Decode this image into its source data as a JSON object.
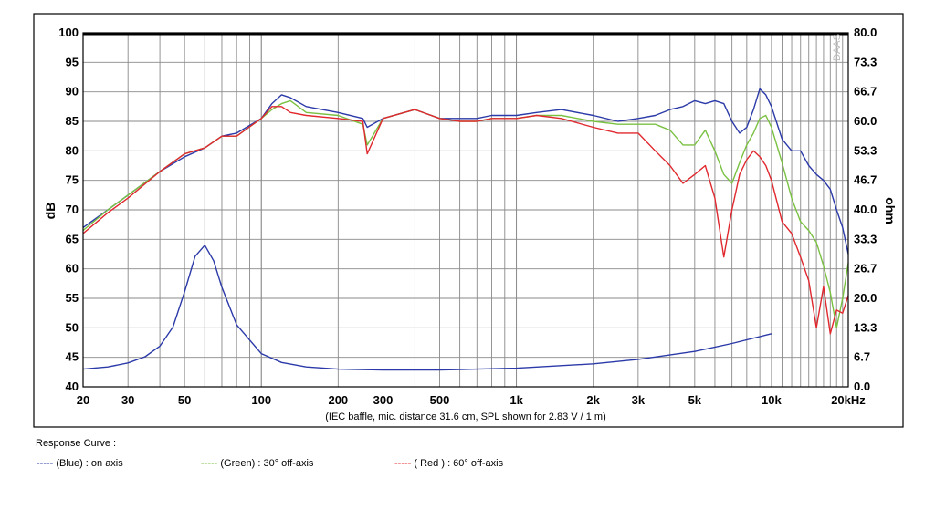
{
  "chart_data": {
    "type": "line",
    "x_scale": "log",
    "xlim": [
      20,
      20000
    ],
    "ylim": [
      40,
      100
    ],
    "y2lim": [
      0,
      80
    ],
    "ylabel": "dB",
    "y2label": "ohm",
    "caption": "(IEC baffle, mic. distance 31.6 cm, SPL shown for 2.83 V / 1 m)",
    "watermark": "DAAS",
    "grid": true,
    "x_ticks": [
      20,
      30,
      50,
      100,
      200,
      300,
      500,
      1000,
      2000,
      3000,
      5000,
      10000,
      20000
    ],
    "x_tick_labels": [
      "20",
      "30",
      "50",
      "100",
      "200",
      "300",
      "500",
      "1k",
      "2k",
      "3k",
      "5k",
      "10k",
      "20kHz"
    ],
    "y_ticks": [
      40,
      45,
      50,
      55,
      60,
      65,
      70,
      75,
      80,
      85,
      90,
      95,
      100
    ],
    "y_tick_labels": [
      "40",
      "45",
      "50",
      "55",
      "60",
      "65",
      "70",
      "75",
      "80",
      "85",
      "90",
      "95",
      "100"
    ],
    "y2_ticks": [
      0,
      6.7,
      13.3,
      20,
      26.7,
      33.3,
      40,
      46.7,
      53.3,
      60,
      66.7,
      73.3,
      80
    ],
    "y2_tick_labels": [
      "0.0",
      "6.7",
      "13.3",
      "20.0",
      "26.7",
      "33.3",
      "40.0",
      "46.7",
      "53.3",
      "60.0",
      "66.7",
      "73.3",
      "80.0"
    ],
    "series": [
      {
        "name": "(Blue) : on axis",
        "color": "#2b3aa8",
        "axis": "y",
        "x": [
          20,
          25,
          30,
          40,
          50,
          60,
          70,
          80,
          100,
          110,
          120,
          130,
          150,
          200,
          250,
          260,
          300,
          400,
          500,
          600,
          700,
          800,
          1000,
          1200,
          1500,
          2000,
          2500,
          3000,
          3500,
          4000,
          4500,
          5000,
          5500,
          6000,
          6500,
          7000,
          7500,
          8000,
          8500,
          9000,
          9500,
          10000,
          11000,
          12000,
          13000,
          14000,
          15000,
          16000,
          17000,
          18000,
          19000,
          20000
        ],
        "y": [
          67,
          70,
          72.5,
          76.5,
          79,
          80.5,
          82.5,
          83,
          85.5,
          88,
          89.5,
          89,
          87.5,
          86.5,
          85.5,
          84,
          85.5,
          87,
          85.5,
          85.5,
          85.5,
          86,
          86,
          86.5,
          87,
          86,
          85,
          85.5,
          86,
          87,
          87.5,
          88.5,
          88,
          88.5,
          88,
          85,
          83,
          84,
          87,
          90.5,
          89.5,
          87.5,
          82,
          80,
          80,
          77.5,
          76,
          75,
          73.5,
          70,
          67,
          62.5
        ]
      },
      {
        "name": "(Green) : 30° off-axis",
        "color": "#7ac142",
        "axis": "y",
        "x": [
          20,
          25,
          30,
          40,
          50,
          60,
          70,
          80,
          100,
          110,
          120,
          130,
          150,
          200,
          250,
          260,
          300,
          400,
          500,
          600,
          700,
          800,
          1000,
          1200,
          1500,
          2000,
          2500,
          3000,
          3500,
          4000,
          4500,
          5000,
          5500,
          6000,
          6500,
          7000,
          7500,
          8000,
          8500,
          9000,
          9500,
          10000,
          11000,
          12000,
          13000,
          14000,
          15000,
          16000,
          17000,
          18000,
          19000,
          20000
        ],
        "y": [
          66.5,
          70,
          72.5,
          76.5,
          79.5,
          80.5,
          82.5,
          82.5,
          85.5,
          87,
          88,
          88.5,
          86.5,
          86,
          84.5,
          81,
          85.5,
          87,
          85.5,
          85,
          85,
          85.5,
          85.5,
          86,
          86,
          85,
          84.5,
          84.5,
          84.5,
          83.5,
          81,
          81,
          83.5,
          80,
          76,
          74.5,
          78,
          81,
          83,
          85.5,
          86,
          84,
          78,
          72,
          68,
          66.5,
          64.5,
          60.5,
          56,
          50,
          55,
          61
        ]
      },
      {
        "name": "( Red ) : 60° off-axis",
        "color": "#e0282e",
        "axis": "y",
        "x": [
          20,
          25,
          30,
          40,
          50,
          60,
          70,
          80,
          100,
          110,
          120,
          130,
          150,
          200,
          250,
          260,
          300,
          400,
          500,
          600,
          700,
          800,
          1000,
          1200,
          1500,
          2000,
          2500,
          3000,
          3500,
          4000,
          4500,
          5000,
          5500,
          6000,
          6500,
          7000,
          7500,
          8000,
          8500,
          9000,
          9500,
          10000,
          11000,
          12000,
          13000,
          14000,
          15000,
          16000,
          17000,
          18000,
          19000,
          20000
        ],
        "y": [
          66,
          69.5,
          72,
          76.5,
          79.5,
          80.5,
          82.5,
          82.5,
          85.5,
          87.5,
          87.5,
          86.5,
          86,
          85.5,
          85,
          79.5,
          85.5,
          87,
          85.5,
          85,
          85,
          85.5,
          85.5,
          86,
          85.5,
          84,
          83,
          83,
          80,
          77.5,
          74.5,
          76,
          77.5,
          72,
          62,
          70,
          76,
          78.5,
          80,
          79,
          77.5,
          75,
          68,
          66,
          62,
          58,
          50,
          57,
          49,
          53,
          52.5,
          55.5
        ]
      },
      {
        "name": "impedance",
        "color": "#2b3aa8",
        "axis": "y2",
        "x": [
          20,
          25,
          30,
          35,
          40,
          45,
          50,
          55,
          60,
          65,
          70,
          80,
          100,
          120,
          150,
          200,
          300,
          500,
          700,
          1000,
          2000,
          3000,
          5000,
          7000,
          10000
        ],
        "y": [
          4,
          4.5,
          5.4,
          6.8,
          9.2,
          13.5,
          21.5,
          29.5,
          32,
          28.5,
          22.5,
          14,
          7.5,
          5.5,
          4.5,
          4,
          3.8,
          3.8,
          4,
          4.2,
          5.2,
          6.2,
          8,
          9.8,
          12
        ]
      }
    ]
  },
  "legend": {
    "title": "Response Curve :",
    "items": [
      {
        "dash": "-----",
        "label": "(Blue)  : on axis",
        "color": "#2b3aa8"
      },
      {
        "dash": "-----",
        "label": "(Green) : 30° off-axis",
        "color": "#7ac142"
      },
      {
        "dash": "-----",
        "label": "( Red ) : 60° off-axis",
        "color": "#e0282e"
      }
    ]
  }
}
